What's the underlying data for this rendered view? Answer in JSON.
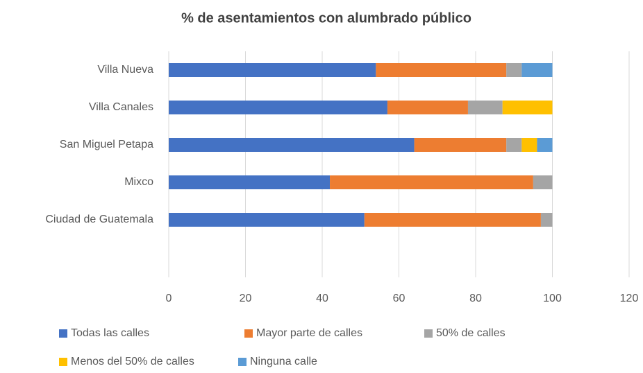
{
  "chart_data": {
    "type": "stacked_barh",
    "title": "% de asentamientos con alumbrado público",
    "categories": [
      "Villa Nueva",
      "Villa Canales",
      "San Miguel Petapa",
      "Mixco",
      "Ciudad de Guatemala"
    ],
    "series": [
      {
        "name": "Todas las calles",
        "color": "#4472c4",
        "values": [
          54,
          57,
          64,
          42,
          51
        ]
      },
      {
        "name": "Mayor parte de calles",
        "color": "#ed7d31",
        "values": [
          34,
          21,
          24,
          53,
          46
        ]
      },
      {
        "name": "50% de calles",
        "color": "#a5a5a5",
        "values": [
          4,
          9,
          4,
          5,
          3
        ]
      },
      {
        "name": "Menos del 50% de calles",
        "color": "#ffc000",
        "values": [
          0,
          13,
          4,
          0,
          0
        ]
      },
      {
        "name": "Ninguna calle",
        "color": "#5b9bd5",
        "values": [
          8,
          0,
          4,
          0,
          0
        ]
      }
    ],
    "xlim": [
      0,
      120
    ],
    "xticks": [
      0,
      20,
      40,
      60,
      80,
      100,
      120
    ],
    "grid": true,
    "legend": "bottom"
  }
}
